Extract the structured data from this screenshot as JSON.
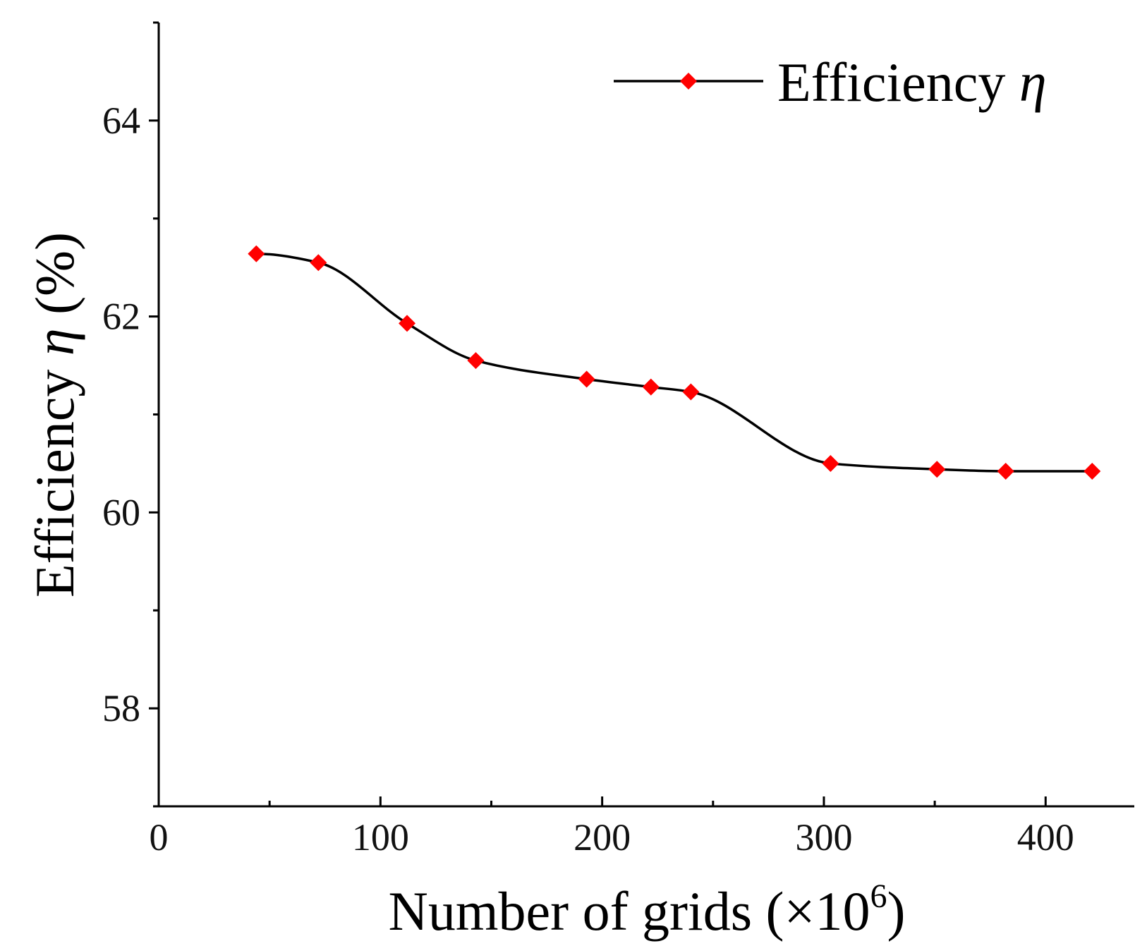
{
  "chart_data": {
    "type": "line",
    "title": "",
    "xlabel": "Number of grids (×10⁶)",
    "xlabel_main": "Number of grids (×10",
    "xlabel_exp": "6",
    "xlabel_close": ")",
    "ylabel": "Efficiency η (%)",
    "ylabel_main": "Efficiency ",
    "ylabel_symbol": "η",
    "ylabel_unit": " (%)",
    "xlim": [
      0,
      440
    ],
    "ylim": [
      57,
      65
    ],
    "x_ticks_major": [
      0,
      100,
      200,
      300,
      400
    ],
    "x_ticks_minor": [
      50,
      150,
      250,
      350
    ],
    "y_ticks_major": [
      58,
      60,
      62,
      64
    ],
    "y_ticks_minor": [
      57,
      59,
      61,
      63,
      65
    ],
    "grid": false,
    "legend_position": "top-right",
    "series": [
      {
        "name": "Efficiency η",
        "name_main": "Efficiency ",
        "name_symbol": "η",
        "line_color": "#000000",
        "marker": "diamond",
        "marker_color": "#ff0000",
        "x": [
          44,
          72,
          112,
          143,
          193,
          222,
          240,
          303,
          351,
          382,
          421
        ],
        "y": [
          62.64,
          62.55,
          61.93,
          61.55,
          61.36,
          61.28,
          61.23,
          60.5,
          60.44,
          60.42,
          60.42
        ]
      }
    ]
  }
}
